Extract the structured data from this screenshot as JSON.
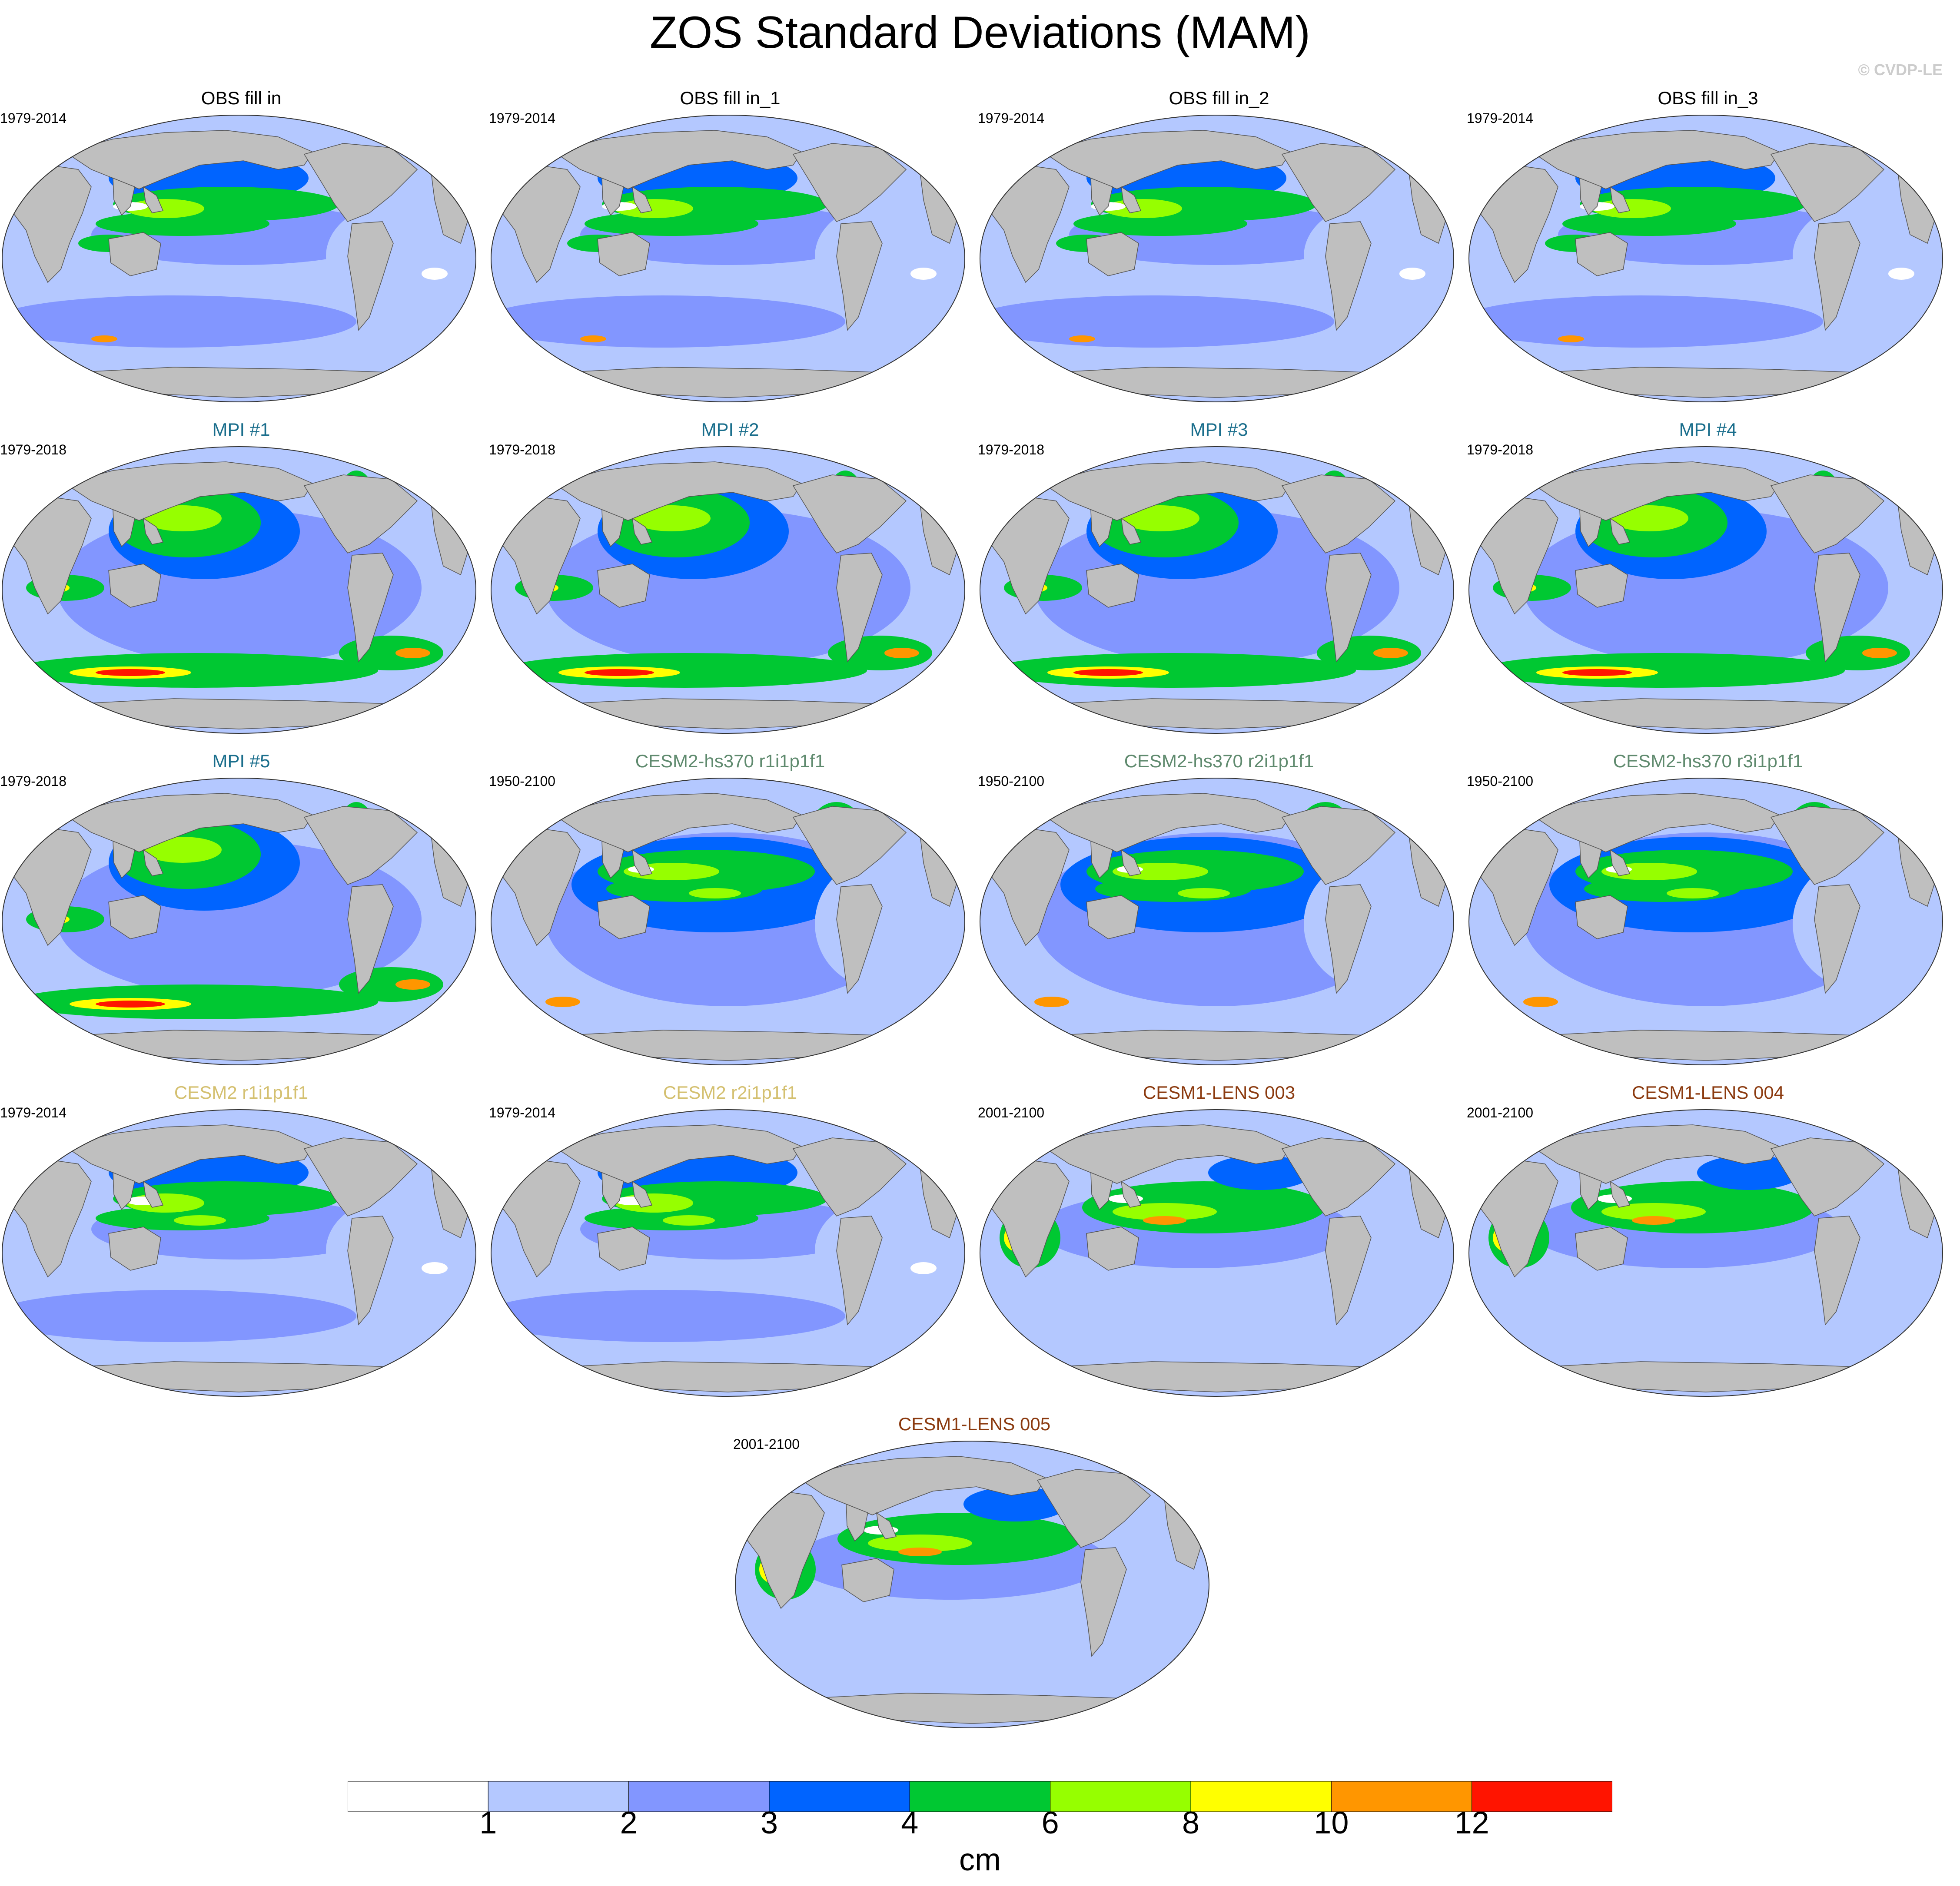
{
  "title": "ZOS Standard Deviations (MAM)",
  "credit": "© CVDP-LE",
  "palette": {
    "land": "#bfbfbf",
    "outline": "#555555",
    "white": "#ffffff",
    "light_blue": "#b4c8ff",
    "mid_blue": "#8296ff",
    "blue": "#0064ff",
    "green": "#00c832",
    "light_green": "#96ff00",
    "yellow": "#ffff00",
    "orange": "#ff9600",
    "red": "#ff1400"
  },
  "panels": [
    {
      "title": "OBS fill in",
      "years": "1979-2014",
      "title_color": "#000000",
      "variant": "obs"
    },
    {
      "title": "OBS fill in_1",
      "years": "1979-2014",
      "title_color": "#000000",
      "variant": "obs"
    },
    {
      "title": "OBS fill in_2",
      "years": "1979-2014",
      "title_color": "#000000",
      "variant": "obs"
    },
    {
      "title": "OBS fill in_3",
      "years": "1979-2014",
      "title_color": "#000000",
      "variant": "obs"
    },
    {
      "title": "MPI #1",
      "years": "1979-2018",
      "title_color": "#1a6e8c",
      "variant": "mpi"
    },
    {
      "title": "MPI #2",
      "years": "1979-2018",
      "title_color": "#1a6e8c",
      "variant": "mpi"
    },
    {
      "title": "MPI #3",
      "years": "1979-2018",
      "title_color": "#1a6e8c",
      "variant": "mpi"
    },
    {
      "title": "MPI #4",
      "years": "1979-2018",
      "title_color": "#1a6e8c",
      "variant": "mpi"
    },
    {
      "title": "MPI #5",
      "years": "1979-2018",
      "title_color": "#1a6e8c",
      "variant": "mpi"
    },
    {
      "title": "CESM2-hs370 r1i1p1f1",
      "years": "1950-2100",
      "title_color": "#5f8a6e",
      "variant": "hs370"
    },
    {
      "title": "CESM2-hs370 r2i1p1f1",
      "years": "1950-2100",
      "title_color": "#5f8a6e",
      "variant": "hs370"
    },
    {
      "title": "CESM2-hs370 r3i1p1f1",
      "years": "1950-2100",
      "title_color": "#5f8a6e",
      "variant": "hs370"
    },
    {
      "title": "CESM2 r1i1p1f1",
      "years": "1979-2014",
      "title_color": "#d4c070",
      "variant": "cesm2"
    },
    {
      "title": "CESM2 r2i1p1f1",
      "years": "1979-2014",
      "title_color": "#d4c070",
      "variant": "cesm2"
    },
    {
      "title": "CESM1-LENS 003",
      "years": "2001-2100",
      "title_color": "#8b3a0f",
      "variant": "lens"
    },
    {
      "title": "CESM1-LENS 004",
      "years": "2001-2100",
      "title_color": "#8b3a0f",
      "variant": "lens"
    },
    {
      "title": "CESM1-LENS 005",
      "years": "2001-2100",
      "title_color": "#8b3a0f",
      "variant": "lens"
    }
  ],
  "colorbar": {
    "colors": [
      "#ffffff",
      "#b4c8ff",
      "#8296ff",
      "#0064ff",
      "#00c832",
      "#96ff00",
      "#ffff00",
      "#ff9600",
      "#ff1400"
    ],
    "labels": [
      "1",
      "2",
      "3",
      "4",
      "6",
      "8",
      "10",
      "12"
    ],
    "unit": "cm"
  }
}
